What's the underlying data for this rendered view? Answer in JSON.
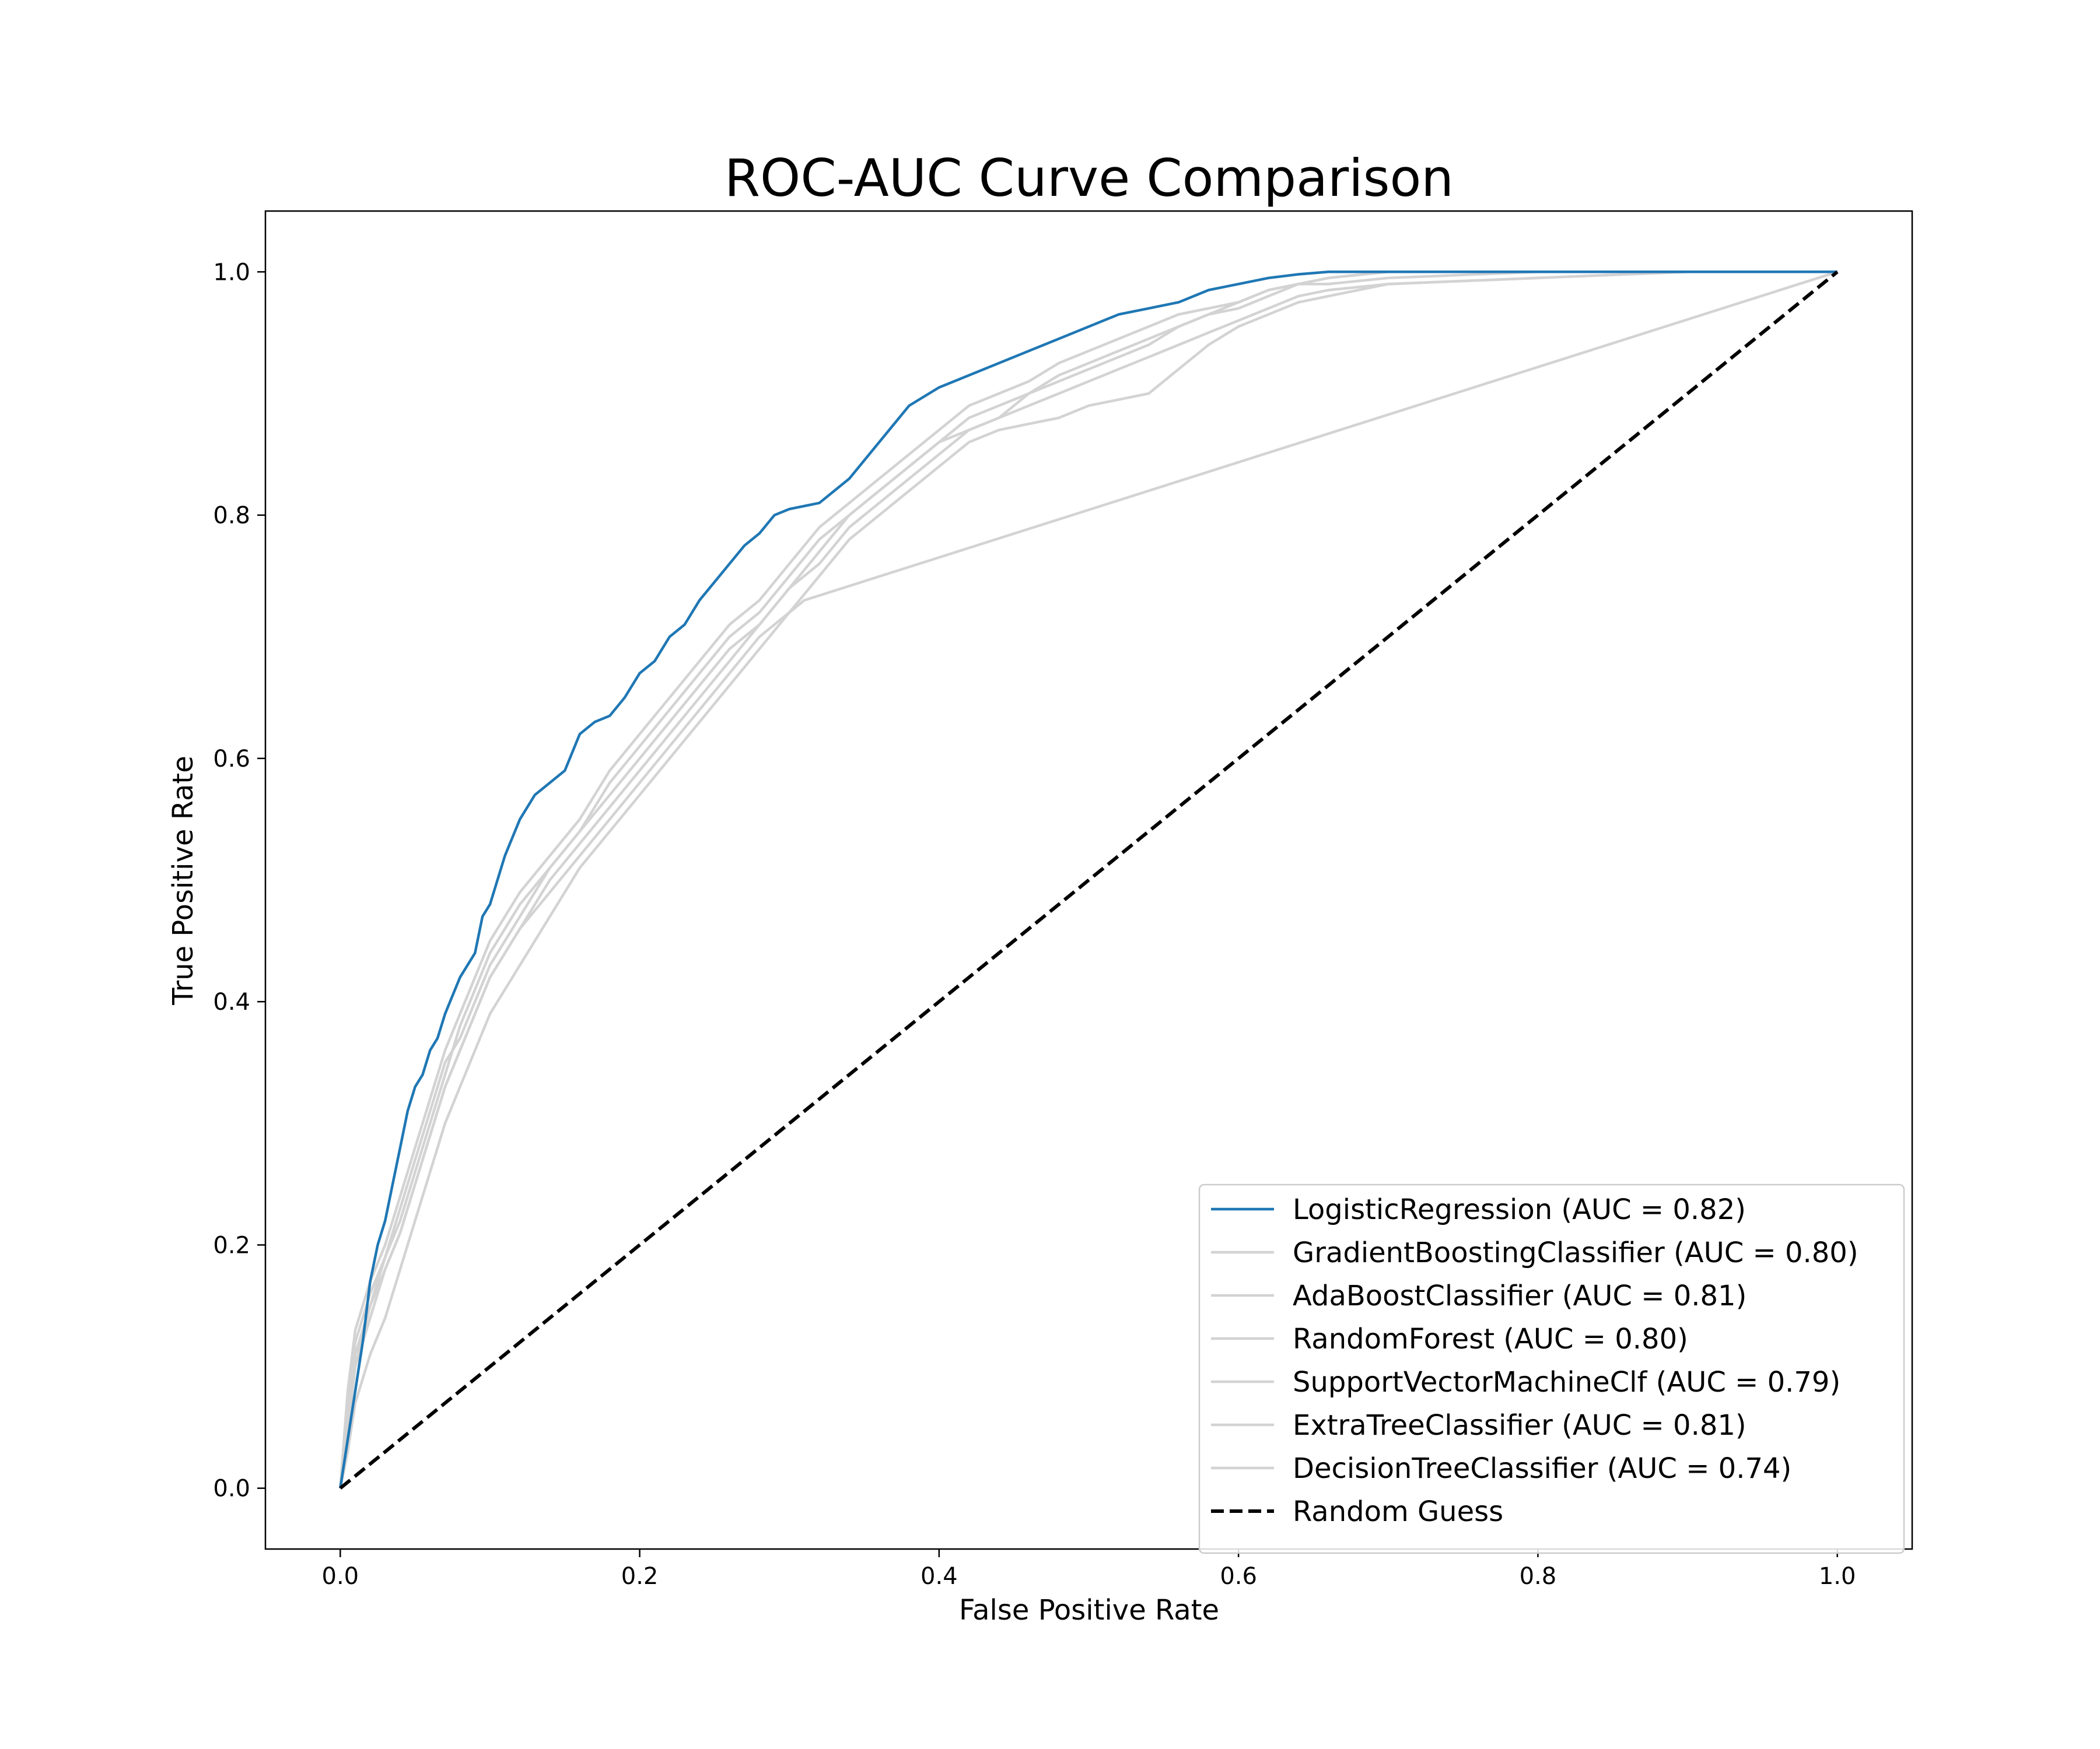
{
  "chart_data": {
    "type": "line",
    "title": "ROC-AUC Curve Comparison",
    "xlabel": "False Positive Rate",
    "ylabel": "True Positive Rate",
    "xlim": [
      -0.05,
      1.05
    ],
    "ylim": [
      -0.05,
      1.05
    ],
    "xticks": [
      "0.0",
      "0.2",
      "0.4",
      "0.6",
      "0.8",
      "1.0"
    ],
    "yticks": [
      "0.0",
      "0.2",
      "0.4",
      "0.6",
      "0.8",
      "1.0"
    ],
    "grid": false,
    "legend_position": "lower-right",
    "colors": {
      "highlight": "#1f77b4",
      "other": "#d3d3d3",
      "random": "#000000"
    },
    "series": [
      {
        "name": "LogisticRegression (AUC = 0.82)",
        "color": "#1f77b4",
        "x": [
          0.0,
          0.005,
          0.01,
          0.015,
          0.02,
          0.025,
          0.03,
          0.035,
          0.04,
          0.045,
          0.05,
          0.055,
          0.06,
          0.065,
          0.07,
          0.08,
          0.09,
          0.095,
          0.1,
          0.105,
          0.11,
          0.12,
          0.13,
          0.14,
          0.15,
          0.16,
          0.17,
          0.18,
          0.19,
          0.2,
          0.21,
          0.22,
          0.23,
          0.24,
          0.25,
          0.26,
          0.27,
          0.28,
          0.29,
          0.3,
          0.32,
          0.34,
          0.36,
          0.38,
          0.4,
          0.42,
          0.44,
          0.46,
          0.48,
          0.5,
          0.52,
          0.54,
          0.56,
          0.58,
          0.6,
          0.62,
          0.64,
          0.66,
          0.7,
          1.0
        ],
        "y": [
          0.0,
          0.04,
          0.08,
          0.12,
          0.17,
          0.2,
          0.22,
          0.25,
          0.28,
          0.31,
          0.33,
          0.34,
          0.36,
          0.37,
          0.39,
          0.42,
          0.44,
          0.47,
          0.48,
          0.5,
          0.52,
          0.55,
          0.57,
          0.58,
          0.59,
          0.62,
          0.63,
          0.635,
          0.65,
          0.67,
          0.68,
          0.7,
          0.71,
          0.73,
          0.745,
          0.76,
          0.775,
          0.785,
          0.8,
          0.805,
          0.81,
          0.83,
          0.86,
          0.89,
          0.905,
          0.915,
          0.925,
          0.935,
          0.945,
          0.955,
          0.965,
          0.97,
          0.975,
          0.985,
          0.99,
          0.995,
          0.998,
          1.0,
          1.0,
          1.0
        ]
      },
      {
        "name": "GradientBoostingClassifier (AUC = 0.80)",
        "color": "#d3d3d3",
        "x": [
          0.0,
          0.005,
          0.01,
          0.02,
          0.03,
          0.04,
          0.05,
          0.06,
          0.07,
          0.08,
          0.09,
          0.1,
          0.12,
          0.14,
          0.16,
          0.18,
          0.2,
          0.22,
          0.24,
          0.26,
          0.28,
          0.3,
          0.32,
          0.34,
          0.36,
          0.38,
          0.4,
          0.42,
          0.44,
          0.46,
          0.48,
          0.5,
          0.52,
          0.54,
          0.56,
          0.58,
          0.6,
          0.62,
          0.64,
          0.66,
          0.7,
          0.8,
          0.9,
          1.0
        ],
        "y": [
          0.0,
          0.05,
          0.1,
          0.15,
          0.19,
          0.23,
          0.27,
          0.31,
          0.35,
          0.37,
          0.4,
          0.43,
          0.47,
          0.51,
          0.54,
          0.57,
          0.6,
          0.63,
          0.66,
          0.69,
          0.71,
          0.74,
          0.77,
          0.8,
          0.82,
          0.84,
          0.86,
          0.87,
          0.88,
          0.9,
          0.91,
          0.92,
          0.93,
          0.94,
          0.955,
          0.965,
          0.97,
          0.98,
          0.99,
          0.99,
          0.995,
          1.0,
          1.0,
          1.0
        ]
      },
      {
        "name": "AdaBoostClassifier (AUC = 0.81)",
        "color": "#d3d3d3",
        "x": [
          0.0,
          0.005,
          0.01,
          0.02,
          0.03,
          0.04,
          0.05,
          0.06,
          0.07,
          0.08,
          0.09,
          0.1,
          0.12,
          0.14,
          0.16,
          0.18,
          0.2,
          0.22,
          0.24,
          0.26,
          0.28,
          0.3,
          0.32,
          0.34,
          0.36,
          0.38,
          0.4,
          0.42,
          0.44,
          0.46,
          0.48,
          0.5,
          0.52,
          0.54,
          0.56,
          0.58,
          0.6,
          0.62,
          0.64,
          0.66,
          0.7,
          0.8,
          0.9,
          1.0
        ],
        "y": [
          0.0,
          0.08,
          0.13,
          0.17,
          0.2,
          0.24,
          0.28,
          0.32,
          0.36,
          0.39,
          0.42,
          0.45,
          0.49,
          0.52,
          0.55,
          0.59,
          0.62,
          0.65,
          0.68,
          0.71,
          0.73,
          0.76,
          0.79,
          0.81,
          0.83,
          0.85,
          0.87,
          0.89,
          0.9,
          0.91,
          0.925,
          0.935,
          0.945,
          0.955,
          0.965,
          0.97,
          0.975,
          0.985,
          0.99,
          0.995,
          1.0,
          1.0,
          1.0,
          1.0
        ]
      },
      {
        "name": "RandomForest (AUC = 0.80)",
        "color": "#d3d3d3",
        "x": [
          0.0,
          0.005,
          0.01,
          0.02,
          0.03,
          0.04,
          0.05,
          0.06,
          0.07,
          0.08,
          0.09,
          0.1,
          0.12,
          0.14,
          0.16,
          0.18,
          0.2,
          0.22,
          0.24,
          0.26,
          0.28,
          0.3,
          0.32,
          0.34,
          0.36,
          0.38,
          0.4,
          0.42,
          0.44,
          0.46,
          0.48,
          0.5,
          0.52,
          0.54,
          0.56,
          0.58,
          0.6,
          0.62,
          0.64,
          0.66,
          0.7,
          0.8,
          0.9,
          1.0
        ],
        "y": [
          0.0,
          0.06,
          0.11,
          0.15,
          0.18,
          0.21,
          0.25,
          0.29,
          0.33,
          0.36,
          0.39,
          0.42,
          0.46,
          0.5,
          0.53,
          0.56,
          0.59,
          0.62,
          0.65,
          0.68,
          0.71,
          0.74,
          0.76,
          0.79,
          0.81,
          0.83,
          0.85,
          0.87,
          0.88,
          0.89,
          0.9,
          0.91,
          0.92,
          0.93,
          0.94,
          0.95,
          0.96,
          0.97,
          0.98,
          0.985,
          0.99,
          0.995,
          1.0,
          1.0
        ]
      },
      {
        "name": "SupportVectorMachineClf (AUC = 0.79)",
        "color": "#d3d3d3",
        "x": [
          0.0,
          0.005,
          0.01,
          0.02,
          0.03,
          0.04,
          0.05,
          0.06,
          0.07,
          0.08,
          0.09,
          0.1,
          0.12,
          0.14,
          0.16,
          0.18,
          0.2,
          0.22,
          0.24,
          0.26,
          0.28,
          0.3,
          0.32,
          0.34,
          0.36,
          0.38,
          0.4,
          0.42,
          0.44,
          0.46,
          0.48,
          0.5,
          0.52,
          0.54,
          0.56,
          0.58,
          0.6,
          0.62,
          0.64,
          0.66,
          0.7,
          0.8,
          0.9,
          1.0
        ],
        "y": [
          0.0,
          0.03,
          0.07,
          0.11,
          0.14,
          0.18,
          0.22,
          0.26,
          0.3,
          0.33,
          0.36,
          0.39,
          0.43,
          0.47,
          0.51,
          0.54,
          0.57,
          0.6,
          0.63,
          0.66,
          0.69,
          0.72,
          0.75,
          0.78,
          0.8,
          0.82,
          0.84,
          0.86,
          0.87,
          0.875,
          0.88,
          0.89,
          0.895,
          0.9,
          0.92,
          0.94,
          0.955,
          0.965,
          0.975,
          0.98,
          0.99,
          0.995,
          1.0,
          1.0
        ]
      },
      {
        "name": "ExtraTreeClassifier (AUC = 0.81)",
        "color": "#d3d3d3",
        "x": [
          0.0,
          0.005,
          0.01,
          0.02,
          0.03,
          0.04,
          0.05,
          0.06,
          0.07,
          0.08,
          0.09,
          0.1,
          0.12,
          0.14,
          0.16,
          0.18,
          0.2,
          0.22,
          0.24,
          0.26,
          0.28,
          0.3,
          0.32,
          0.34,
          0.36,
          0.38,
          0.4,
          0.42,
          0.44,
          0.46,
          0.48,
          0.5,
          0.52,
          0.54,
          0.56,
          0.58,
          0.6,
          0.62,
          0.64,
          0.66,
          0.7,
          0.8,
          0.9,
          1.0
        ],
        "y": [
          0.0,
          0.07,
          0.12,
          0.16,
          0.19,
          0.22,
          0.26,
          0.3,
          0.34,
          0.38,
          0.41,
          0.44,
          0.48,
          0.51,
          0.54,
          0.58,
          0.61,
          0.64,
          0.67,
          0.7,
          0.72,
          0.75,
          0.78,
          0.8,
          0.82,
          0.84,
          0.86,
          0.88,
          0.89,
          0.9,
          0.915,
          0.925,
          0.935,
          0.945,
          0.955,
          0.965,
          0.975,
          0.985,
          0.99,
          0.995,
          1.0,
          1.0,
          1.0,
          1.0
        ]
      },
      {
        "name": "DecisionTreeClassifier (AUC = 0.74)",
        "color": "#d3d3d3",
        "x": [
          0.0,
          0.005,
          0.01,
          0.02,
          0.03,
          0.04,
          0.05,
          0.06,
          0.07,
          0.08,
          0.09,
          0.1,
          0.12,
          0.14,
          0.16,
          0.18,
          0.2,
          0.22,
          0.24,
          0.26,
          0.28,
          0.3,
          0.31,
          1.0
        ],
        "y": [
          0.0,
          0.05,
          0.1,
          0.14,
          0.18,
          0.21,
          0.25,
          0.29,
          0.33,
          0.36,
          0.39,
          0.42,
          0.46,
          0.49,
          0.52,
          0.55,
          0.58,
          0.61,
          0.64,
          0.67,
          0.7,
          0.72,
          0.73,
          1.0
        ]
      },
      {
        "name": "Random Guess",
        "color": "#000000",
        "dashed": true,
        "x": [
          0.0,
          1.0
        ],
        "y": [
          0.0,
          1.0
        ]
      }
    ]
  }
}
